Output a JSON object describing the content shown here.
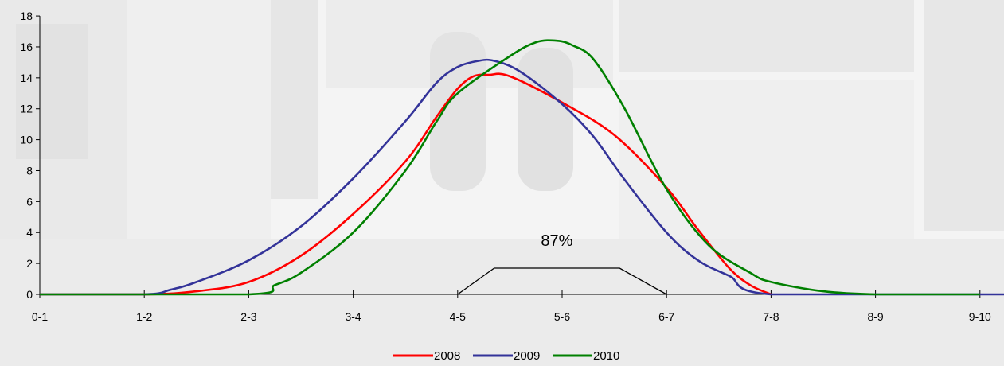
{
  "chart_data": {
    "type": "line",
    "categories": [
      "0-1",
      "1-2",
      "2-3",
      "3-4",
      "4-5",
      "5-6",
      "6-7",
      "7-8",
      "8-9",
      "9-10"
    ],
    "ylim": [
      0,
      18
    ],
    "yticks": [
      0,
      2,
      4,
      6,
      8,
      10,
      12,
      14,
      16,
      18
    ],
    "grid": false,
    "legend_position": "bottom",
    "series": [
      {
        "name": "2008",
        "color": "#ff0000",
        "points": [
          [
            0,
            0
          ],
          [
            1,
            0
          ],
          [
            1.5,
            0.2
          ],
          [
            2,
            0.8
          ],
          [
            2.5,
            2.5
          ],
          [
            3,
            5.2
          ],
          [
            3.5,
            8.6
          ],
          [
            3.8,
            11.5
          ],
          [
            4,
            13.3
          ],
          [
            4.15,
            14.1
          ],
          [
            4.3,
            14.2
          ],
          [
            4.5,
            14.1
          ],
          [
            5,
            12.4
          ],
          [
            5.5,
            10.3
          ],
          [
            6,
            6.9
          ],
          [
            6.3,
            4.2
          ],
          [
            6.6,
            1.7
          ],
          [
            6.8,
            0.6
          ],
          [
            7,
            0
          ]
        ]
      },
      {
        "name": "2009",
        "color": "#333399",
        "points": [
          [
            0,
            0
          ],
          [
            1,
            0
          ],
          [
            1.25,
            0.3
          ],
          [
            1.5,
            0.8
          ],
          [
            2,
            2.2
          ],
          [
            2.5,
            4.4
          ],
          [
            3,
            7.5
          ],
          [
            3.5,
            11.2
          ],
          [
            3.8,
            13.7
          ],
          [
            4,
            14.7
          ],
          [
            4.2,
            15.1
          ],
          [
            4.35,
            15.1
          ],
          [
            4.6,
            14.4
          ],
          [
            5,
            12.3
          ],
          [
            5.3,
            10.2
          ],
          [
            5.6,
            7.4
          ],
          [
            6,
            4.0
          ],
          [
            6.3,
            2.2
          ],
          [
            6.6,
            1.2
          ],
          [
            7,
            0
          ],
          [
            9,
            0
          ],
          [
            10,
            0
          ]
        ]
      },
      {
        "name": "2010",
        "color": "#008000",
        "points": [
          [
            0,
            0
          ],
          [
            2,
            0
          ],
          [
            2.25,
            0.6
          ],
          [
            2.5,
            1.4
          ],
          [
            3,
            4.0
          ],
          [
            3.5,
            8.0
          ],
          [
            3.8,
            11.2
          ],
          [
            4,
            13.0
          ],
          [
            4.5,
            15.4
          ],
          [
            4.75,
            16.3
          ],
          [
            4.95,
            16.4
          ],
          [
            5.1,
            16.1
          ],
          [
            5.3,
            15.2
          ],
          [
            5.6,
            12.0
          ],
          [
            6,
            6.8
          ],
          [
            6.4,
            3.2
          ],
          [
            6.8,
            1.4
          ],
          [
            7,
            0.8
          ],
          [
            7.5,
            0.2
          ],
          [
            8,
            0
          ],
          [
            8.7,
            0
          ],
          [
            9,
            0
          ]
        ]
      }
    ],
    "annotation": {
      "text": "87%",
      "bracket_x": [
        4,
        4.35,
        5.55,
        6
      ],
      "bracket_y": [
        0,
        1.7,
        1.7,
        0
      ]
    }
  }
}
